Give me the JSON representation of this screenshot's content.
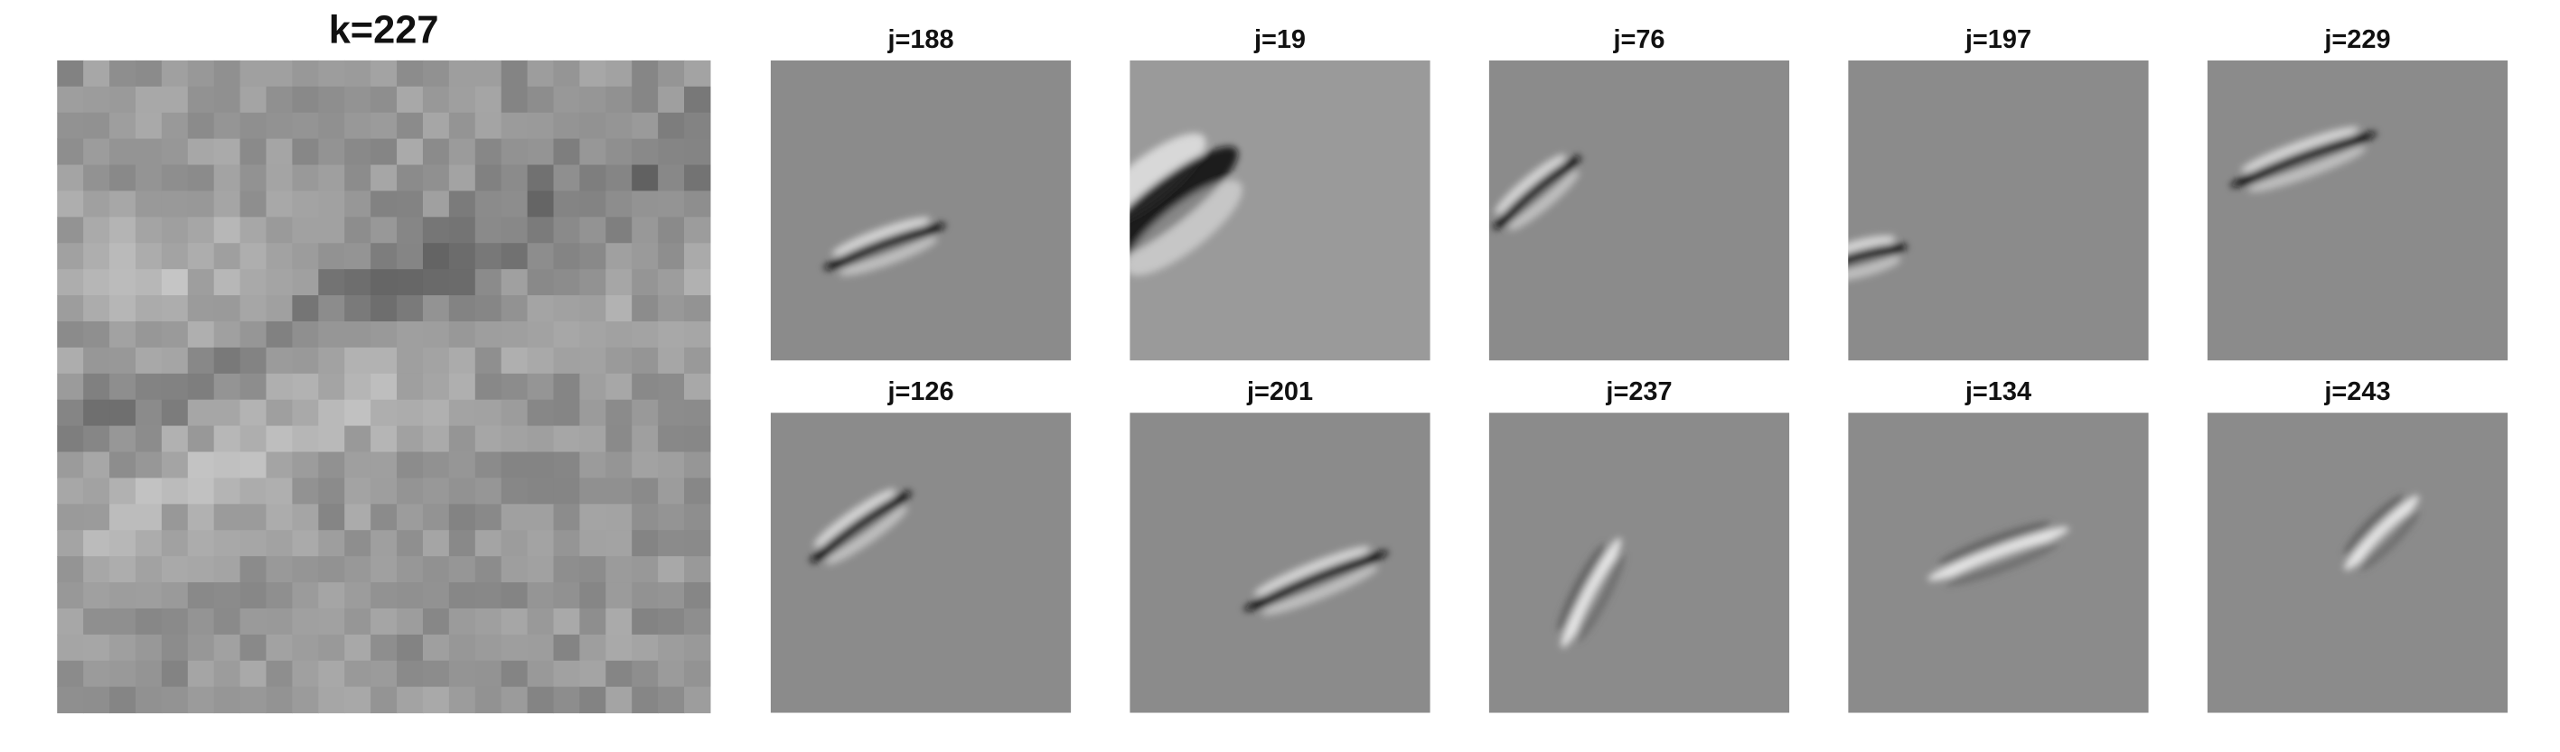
{
  "title": "k=227",
  "panels": [
    {
      "title": "j=188"
    },
    {
      "title": "j=19"
    },
    {
      "title": "j=76"
    },
    {
      "title": "j=197"
    },
    {
      "title": "j=229"
    },
    {
      "title": "j=126"
    },
    {
      "title": "j=201"
    },
    {
      "title": "j=237"
    },
    {
      "title": "j=134"
    },
    {
      "title": "j=243"
    }
  ]
}
